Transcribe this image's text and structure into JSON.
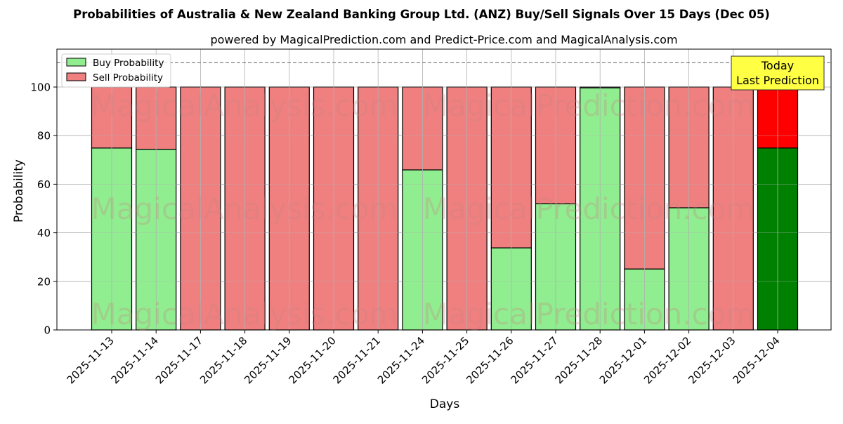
{
  "chart_data": {
    "type": "bar",
    "stacked": true,
    "title": "Probabilities of Australia & New Zealand Banking Group Ltd. (ANZ) Buy/Sell Signals Over 15 Days (Dec 05)",
    "subtitle": "powered by MagicalPrediction.com and Predict-Price.com and MagicalAnalysis.com",
    "xlabel": "Days",
    "ylabel": "Probability",
    "ylim": [
      0,
      115.5
    ],
    "yticks": [
      0,
      20,
      40,
      60,
      80,
      100
    ],
    "grid": true,
    "legend_position": "upper left",
    "categories": [
      "2025-11-13",
      "2025-11-14",
      "2025-11-17",
      "2025-11-18",
      "2025-11-19",
      "2025-11-20",
      "2025-11-21",
      "2025-11-24",
      "2025-11-25",
      "2025-11-26",
      "2025-11-27",
      "2025-11-28",
      "2025-12-01",
      "2025-12-02",
      "2025-12-03",
      "2025-12-04"
    ],
    "series": [
      {
        "name": "Buy Probability",
        "color": "#90ee90",
        "values": [
          74.9,
          74.4,
          0,
          0,
          0,
          0,
          0,
          65.9,
          0,
          33.8,
          52.0,
          99.7,
          25.1,
          50.3,
          0,
          74.9
        ]
      },
      {
        "name": "Sell Probability",
        "color": "#f08080",
        "values": [
          25.1,
          25.6,
          100,
          100,
          100,
          100,
          100,
          34.1,
          100,
          66.2,
          48.0,
          0.3,
          74.9,
          49.7,
          100,
          25.1
        ]
      }
    ],
    "highlight": {
      "index": 15,
      "buy_color": "#008000",
      "sell_color": "#ff0000",
      "annotation": [
        "Today",
        "Last Prediction"
      ],
      "annotation_bg": "#ffff44"
    },
    "reference_line": {
      "y": 110,
      "style": "dashed",
      "color": "#808080"
    },
    "watermarks": [
      "MagicalAnalysis.com",
      "MagicalPrediction.com"
    ]
  }
}
